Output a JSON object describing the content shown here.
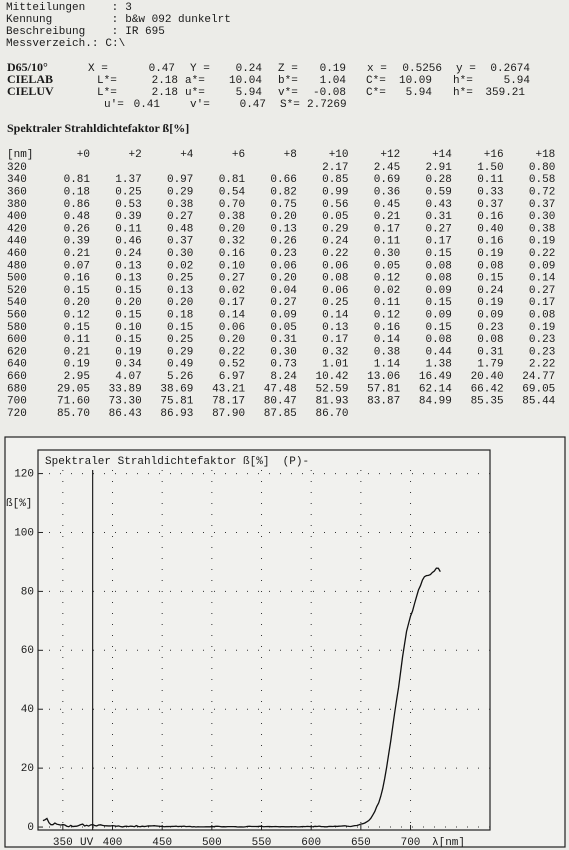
{
  "header": {
    "lines": [
      {
        "label": "Mitteilungen    :",
        "value": "3"
      },
      {
        "label": "Kennung         :",
        "value": "b&w 092 dunkelrt"
      },
      {
        "label": "Beschreibung    :",
        "value": "IR 695"
      },
      {
        "label": "Messverzeich.:",
        "value": "C:\\"
      }
    ]
  },
  "colorimetry": [
    {
      "label": "D65/10°",
      "fields": [
        {
          "name": "X =",
          "value": "0.47"
        },
        {
          "name": "Y =",
          "value": "0.24"
        },
        {
          "name": "Z =",
          "value": "0.19"
        },
        {
          "name": "x =",
          "value": "0.5256"
        },
        {
          "name": "y =",
          "value": "0.2674"
        }
      ]
    },
    {
      "label": "CIELAB",
      "fields": [
        {
          "name": "L*=",
          "value": "2.18"
        },
        {
          "name": "a*=",
          "value": "10.04"
        },
        {
          "name": "b*=",
          "value": "1.04"
        },
        {
          "name": "C*=",
          "value": "10.09"
        },
        {
          "name": "h*=",
          "value": "5.94"
        }
      ]
    },
    {
      "label": "CIELUV",
      "fields": [
        {
          "name": "L*=",
          "value": "2.18"
        },
        {
          "name": "u*=",
          "value": "5.94"
        },
        {
          "name": "v*=",
          "value": "-0.08"
        },
        {
          "name": "C*=",
          "value": "5.94"
        },
        {
          "name": "h*=",
          "value": "359.21"
        }
      ]
    },
    {
      "fields": [
        {
          "name": "u'=",
          "value": "0.41"
        },
        {
          "name": "v'=",
          "value": "0.47"
        },
        {
          "name": "S*=",
          "value": "2.7269"
        }
      ]
    }
  ],
  "table": {
    "title": "Spektraler Strahldichtefaktor ß[%]",
    "header": [
      "[nm]",
      "+0",
      "+2",
      "+4",
      "+6",
      "+8",
      "+10",
      "+12",
      "+14",
      "+16",
      "+18"
    ],
    "rows": [
      [
        "320",
        null,
        null,
        null,
        null,
        null,
        "2.17",
        "2.45",
        "2.91",
        "1.50",
        "0.80"
      ],
      [
        "340",
        "0.81",
        "1.37",
        "0.97",
        "0.81",
        "0.66",
        "0.85",
        "0.69",
        "0.28",
        "0.11",
        "0.58"
      ],
      [
        "360",
        "0.18",
        "0.25",
        "0.29",
        "0.54",
        "0.82",
        "0.99",
        "0.36",
        "0.59",
        "0.33",
        "0.72"
      ],
      [
        "380",
        "0.86",
        "0.53",
        "0.38",
        "0.70",
        "0.75",
        "0.56",
        "0.45",
        "0.43",
        "0.37",
        "0.37"
      ],
      [
        "400",
        "0.48",
        "0.39",
        "0.27",
        "0.38",
        "0.20",
        "0.05",
        "0.21",
        "0.31",
        "0.16",
        "0.30"
      ],
      [
        "420",
        "0.26",
        "0.11",
        "0.48",
        "0.20",
        "0.13",
        "0.29",
        "0.17",
        "0.27",
        "0.40",
        "0.38"
      ],
      [
        "440",
        "0.39",
        "0.46",
        "0.37",
        "0.32",
        "0.26",
        "0.24",
        "0.11",
        "0.17",
        "0.16",
        "0.19"
      ],
      [
        "460",
        "0.21",
        "0.24",
        "0.30",
        "0.16",
        "0.23",
        "0.22",
        "0.30",
        "0.15",
        "0.19",
        "0.22"
      ],
      [
        "480",
        "0.07",
        "0.13",
        "0.02",
        "0.10",
        "0.06",
        "0.06",
        "0.05",
        "0.08",
        "0.08",
        "0.09"
      ],
      [
        "500",
        "0.16",
        "0.13",
        "0.25",
        "0.27",
        "0.20",
        "0.08",
        "0.12",
        "0.08",
        "0.15",
        "0.14"
      ],
      [
        "520",
        "0.15",
        "0.15",
        "0.13",
        "0.02",
        "0.04",
        "0.06",
        "0.02",
        "0.09",
        "0.24",
        "0.27"
      ],
      [
        "540",
        "0.20",
        "0.20",
        "0.20",
        "0.17",
        "0.27",
        "0.25",
        "0.11",
        "0.15",
        "0.19",
        "0.17"
      ],
      [
        "560",
        "0.12",
        "0.15",
        "0.18",
        "0.14",
        "0.09",
        "0.14",
        "0.12",
        "0.09",
        "0.09",
        "0.08"
      ],
      [
        "580",
        "0.15",
        "0.10",
        "0.15",
        "0.06",
        "0.05",
        "0.13",
        "0.16",
        "0.15",
        "0.23",
        "0.19"
      ],
      [
        "600",
        "0.11",
        "0.15",
        "0.25",
        "0.20",
        "0.31",
        "0.17",
        "0.14",
        "0.08",
        "0.08",
        "0.23"
      ],
      [
        "620",
        "0.21",
        "0.19",
        "0.29",
        "0.22",
        "0.30",
        "0.32",
        "0.38",
        "0.44",
        "0.31",
        "0.23"
      ],
      [
        "640",
        "0.19",
        "0.34",
        "0.49",
        "0.52",
        "0.73",
        "1.01",
        "1.14",
        "1.38",
        "1.79",
        "2.22"
      ],
      [
        "660",
        "2.95",
        "4.07",
        "5.26",
        "6.97",
        "8.24",
        "10.42",
        "13.06",
        "16.49",
        "20.40",
        "24.77"
      ],
      [
        "680",
        "29.05",
        "33.89",
        "38.69",
        "43.21",
        "47.48",
        "52.59",
        "57.81",
        "62.14",
        "66.42",
        "69.05"
      ],
      [
        "700",
        "71.60",
        "73.30",
        "75.81",
        "78.17",
        "80.47",
        "81.93",
        "83.87",
        "84.99",
        "85.35",
        "85.44"
      ],
      [
        "720",
        "85.70",
        "86.43",
        "86.93",
        "87.90",
        "87.85",
        "86.70",
        null,
        null,
        null,
        null
      ]
    ]
  },
  "chart_data": {
    "type": "line",
    "title": "Spektraler Strahldichtefaktor ß[%]  (P)-",
    "y_label": "ß[%]",
    "x_label": "λ[nm]",
    "annotation": {
      "text": "UV",
      "x": 380
    },
    "color": "#111111",
    "grid": true,
    "xlim": [
      325,
      780
    ],
    "ylim": [
      -1,
      128
    ],
    "xticks": [
      350,
      400,
      450,
      500,
      550,
      600,
      650,
      700
    ],
    "yticks": [
      0,
      20,
      40,
      60,
      80,
      100,
      120
    ],
    "x": [
      330,
      332,
      334,
      336,
      338,
      340,
      342,
      344,
      346,
      348,
      350,
      352,
      354,
      356,
      358,
      360,
      362,
      364,
      366,
      368,
      370,
      372,
      374,
      376,
      378,
      380,
      382,
      384,
      386,
      388,
      390,
      392,
      394,
      396,
      398,
      400,
      402,
      404,
      406,
      408,
      410,
      412,
      414,
      416,
      418,
      420,
      422,
      424,
      426,
      428,
      430,
      432,
      434,
      436,
      438,
      440,
      442,
      444,
      446,
      448,
      450,
      452,
      454,
      456,
      458,
      460,
      462,
      464,
      466,
      468,
      470,
      472,
      474,
      476,
      478,
      480,
      482,
      484,
      486,
      488,
      490,
      492,
      494,
      496,
      498,
      500,
      502,
      504,
      506,
      508,
      510,
      512,
      514,
      516,
      518,
      520,
      522,
      524,
      526,
      528,
      530,
      532,
      534,
      536,
      538,
      540,
      542,
      544,
      546,
      548,
      550,
      552,
      554,
      556,
      558,
      560,
      562,
      564,
      566,
      568,
      570,
      572,
      574,
      576,
      578,
      580,
      582,
      584,
      586,
      588,
      590,
      592,
      594,
      596,
      598,
      600,
      602,
      604,
      606,
      608,
      610,
      612,
      614,
      616,
      618,
      620,
      622,
      624,
      626,
      628,
      630,
      632,
      634,
      636,
      638,
      640,
      642,
      644,
      646,
      648,
      650,
      652,
      654,
      656,
      658,
      660,
      662,
      664,
      666,
      668,
      670,
      672,
      674,
      676,
      678,
      680,
      682,
      684,
      686,
      688,
      690,
      692,
      694,
      696,
      698,
      700,
      702,
      704,
      706,
      708,
      710,
      712,
      714,
      716,
      718,
      720,
      722,
      724,
      726,
      728,
      730
    ],
    "values": [
      2.17,
      2.45,
      2.91,
      1.5,
      0.8,
      0.81,
      1.37,
      0.97,
      0.81,
      0.66,
      0.85,
      0.69,
      0.28,
      0.11,
      0.58,
      0.18,
      0.25,
      0.29,
      0.54,
      0.82,
      0.99,
      0.36,
      0.59,
      0.33,
      0.72,
      0.86,
      0.53,
      0.38,
      0.7,
      0.75,
      0.56,
      0.45,
      0.43,
      0.37,
      0.37,
      0.48,
      0.39,
      0.27,
      0.38,
      0.2,
      0.05,
      0.21,
      0.31,
      0.16,
      0.3,
      0.26,
      0.11,
      0.48,
      0.2,
      0.13,
      0.29,
      0.17,
      0.27,
      0.4,
      0.38,
      0.39,
      0.46,
      0.37,
      0.32,
      0.26,
      0.24,
      0.11,
      0.17,
      0.16,
      0.19,
      0.21,
      0.24,
      0.3,
      0.16,
      0.23,
      0.22,
      0.3,
      0.15,
      0.19,
      0.22,
      0.07,
      0.13,
      0.02,
      0.1,
      0.06,
      0.06,
      0.05,
      0.08,
      0.08,
      0.09,
      0.16,
      0.13,
      0.25,
      0.27,
      0.2,
      0.08,
      0.12,
      0.08,
      0.15,
      0.14,
      0.15,
      0.15,
      0.13,
      0.02,
      0.04,
      0.06,
      0.02,
      0.09,
      0.24,
      0.27,
      0.2,
      0.2,
      0.2,
      0.17,
      0.27,
      0.25,
      0.11,
      0.15,
      0.19,
      0.17,
      0.12,
      0.15,
      0.18,
      0.14,
      0.09,
      0.14,
      0.12,
      0.09,
      0.09,
      0.08,
      0.15,
      0.1,
      0.15,
      0.06,
      0.05,
      0.13,
      0.16,
      0.15,
      0.23,
      0.19,
      0.11,
      0.15,
      0.25,
      0.2,
      0.31,
      0.17,
      0.14,
      0.08,
      0.08,
      0.23,
      0.21,
      0.19,
      0.29,
      0.22,
      0.3,
      0.32,
      0.38,
      0.44,
      0.31,
      0.23,
      0.19,
      0.34,
      0.49,
      0.52,
      0.73,
      1.01,
      1.14,
      1.38,
      1.79,
      2.22,
      2.95,
      4.07,
      5.26,
      6.97,
      8.24,
      10.42,
      13.06,
      16.49,
      20.4,
      24.77,
      29.05,
      33.89,
      38.69,
      43.21,
      47.48,
      52.59,
      57.81,
      62.14,
      66.42,
      69.05,
      71.6,
      73.3,
      75.81,
      78.17,
      80.47,
      81.93,
      83.87,
      84.99,
      85.35,
      85.44,
      85.7,
      86.43,
      86.93,
      87.9,
      87.85,
      86.7
    ]
  }
}
